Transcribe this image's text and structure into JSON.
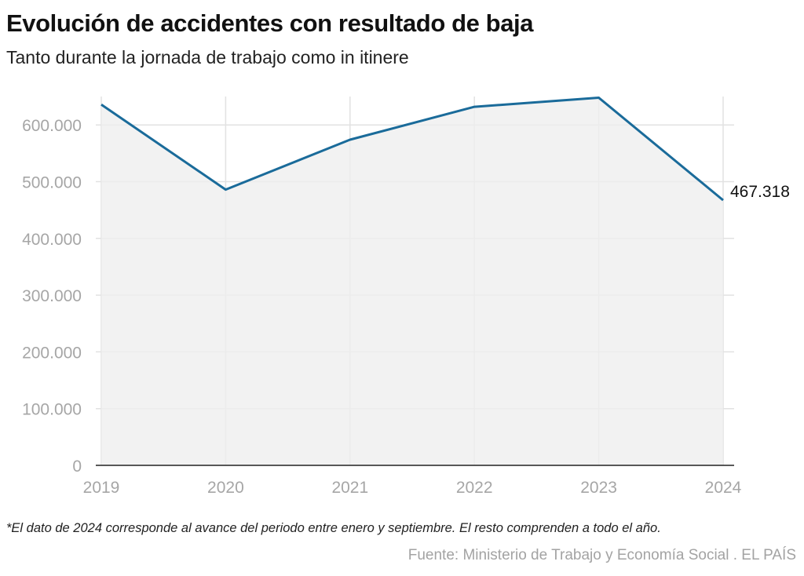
{
  "title": "Evolución de accidentes con resultado de baja",
  "subtitle": "Tanto durante la jornada de trabajo como in itinere",
  "note": "*El dato de 2024 corresponde al avance del periodo entre enero y septiembre. El resto comprenden a todo el año.",
  "source": "Fuente: Ministerio de Trabajo y Economía Social . EL PAÍS",
  "colors": {
    "line": "#1a6b9a",
    "area": "#efefef",
    "grid": "#e2e2e2",
    "baseline": "#222222",
    "tick_text": "#a6a6a6"
  },
  "chart_data": {
    "type": "area",
    "x": [
      "2019",
      "2020",
      "2021",
      "2022",
      "2023",
      "2024"
    ],
    "y": [
      636000,
      486000,
      574000,
      632000,
      648000,
      467318
    ],
    "ylim": [
      0,
      650000
    ],
    "yticks": [
      0,
      100000,
      200000,
      300000,
      400000,
      500000,
      600000
    ],
    "ytick_labels": [
      "0",
      "100.000",
      "200.000",
      "300.000",
      "400.000",
      "500.000",
      "600.000"
    ],
    "end_label": "467.318",
    "grid": true,
    "xlabel": "",
    "ylabel": ""
  }
}
